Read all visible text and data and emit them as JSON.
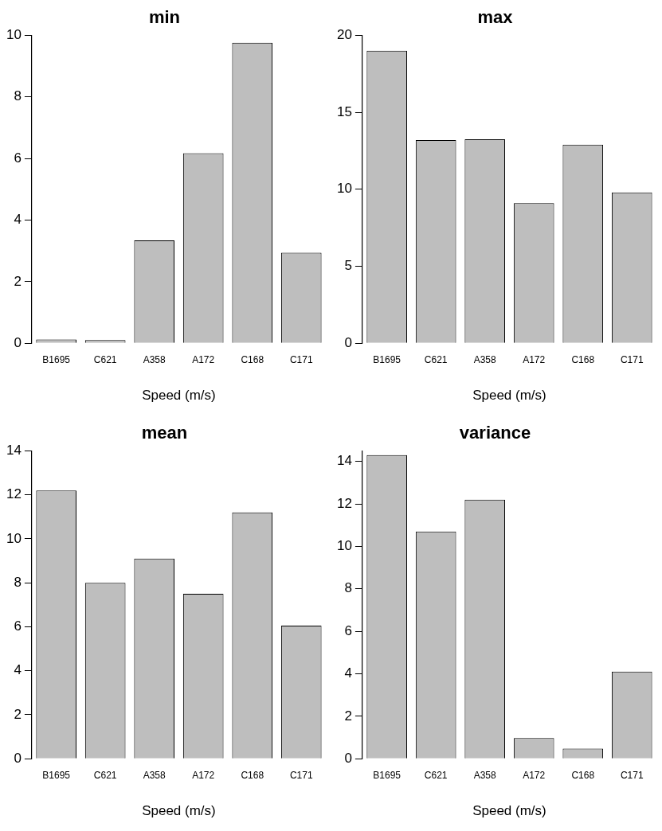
{
  "chart_data": [
    {
      "type": "bar",
      "title": "min",
      "xlabel": "Speed (m/s)",
      "categories": [
        "B1695",
        "C621",
        "A358",
        "A172",
        "C168",
        "C171"
      ],
      "values": [
        0.12,
        0.1,
        3.34,
        6.17,
        9.76,
        2.94
      ],
      "color": "#bebebe",
      "ylim": [
        0,
        10
      ],
      "yticks": [
        0,
        2,
        4,
        6,
        8,
        10
      ],
      "grid": false
    },
    {
      "type": "bar",
      "title": "max",
      "xlabel": "Speed (m/s)",
      "categories": [
        "B1695",
        "C621",
        "A358",
        "A172",
        "C168",
        "C171"
      ],
      "values": [
        19.0,
        13.2,
        13.25,
        9.1,
        12.9,
        9.8
      ],
      "color": "#bebebe",
      "ylim": [
        0,
        20
      ],
      "yticks": [
        0,
        5,
        10,
        15,
        20
      ],
      "grid": false
    },
    {
      "type": "bar",
      "title": "mean",
      "xlabel": "Speed (m/s)",
      "categories": [
        "B1695",
        "C621",
        "A358",
        "A172",
        "C168",
        "C171"
      ],
      "values": [
        12.2,
        8.0,
        9.1,
        7.5,
        11.2,
        6.05
      ],
      "color": "#bebebe",
      "ylim": [
        0,
        14
      ],
      "yticks": [
        0,
        2,
        4,
        6,
        8,
        10,
        12,
        14
      ],
      "grid": false
    },
    {
      "type": "bar",
      "title": "variance",
      "xlabel": "Speed (m/s)",
      "categories": [
        "B1695",
        "C621",
        "A358",
        "A172",
        "C168",
        "C171"
      ],
      "values": [
        14.3,
        10.7,
        12.2,
        0.97,
        0.48,
        4.1
      ],
      "color": "#bebebe",
      "ylim": [
        0,
        14.5
      ],
      "yticks": [
        0,
        2,
        4,
        6,
        8,
        10,
        12,
        14
      ],
      "grid": false
    }
  ]
}
